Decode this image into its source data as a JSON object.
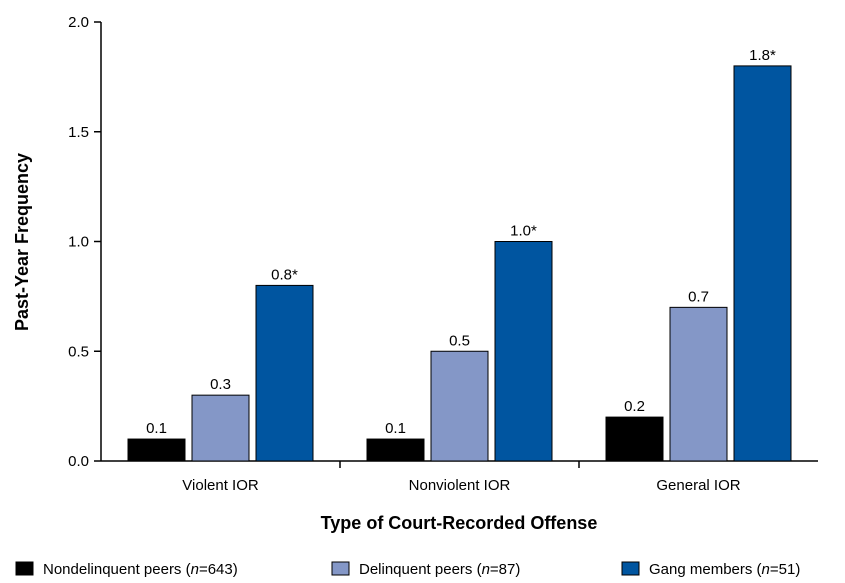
{
  "chart_data": {
    "type": "bar",
    "title": "",
    "xlabel": "Type of Court-Recorded Offense",
    "ylabel": "Past-Year Frequency",
    "ylim": [
      0,
      2.0
    ],
    "yticks": [
      "0.0",
      "0.5",
      "1.0",
      "1.5",
      "2.0"
    ],
    "ytick_values": [
      0,
      0.5,
      1.0,
      1.5,
      2.0
    ],
    "categories": [
      "Violent IOR",
      "Nonviolent IOR",
      "General IOR"
    ],
    "series": [
      {
        "legend_main": "Nondelinquent peers (",
        "legend_n": "n",
        "legend_rest": "=643)",
        "color": "#000000",
        "values": [
          0.1,
          0.1,
          0.2
        ],
        "labels": [
          "0.1",
          "0.1",
          "0.2"
        ]
      },
      {
        "legend_main": "Delinquent peers (",
        "legend_n": "n",
        "legend_rest": "=87)",
        "color": "#8497c7",
        "values": [
          0.3,
          0.5,
          0.7
        ],
        "labels": [
          "0.3",
          "0.5",
          "0.7"
        ]
      },
      {
        "legend_main": "Gang members (",
        "legend_n": "n",
        "legend_rest": "=51)",
        "color": "#0055a0",
        "values": [
          0.8,
          1.0,
          1.8
        ],
        "labels": [
          "0.8*",
          "1.0*",
          "1.8*"
        ]
      }
    ],
    "grid": false,
    "legend_position": "bottom"
  }
}
